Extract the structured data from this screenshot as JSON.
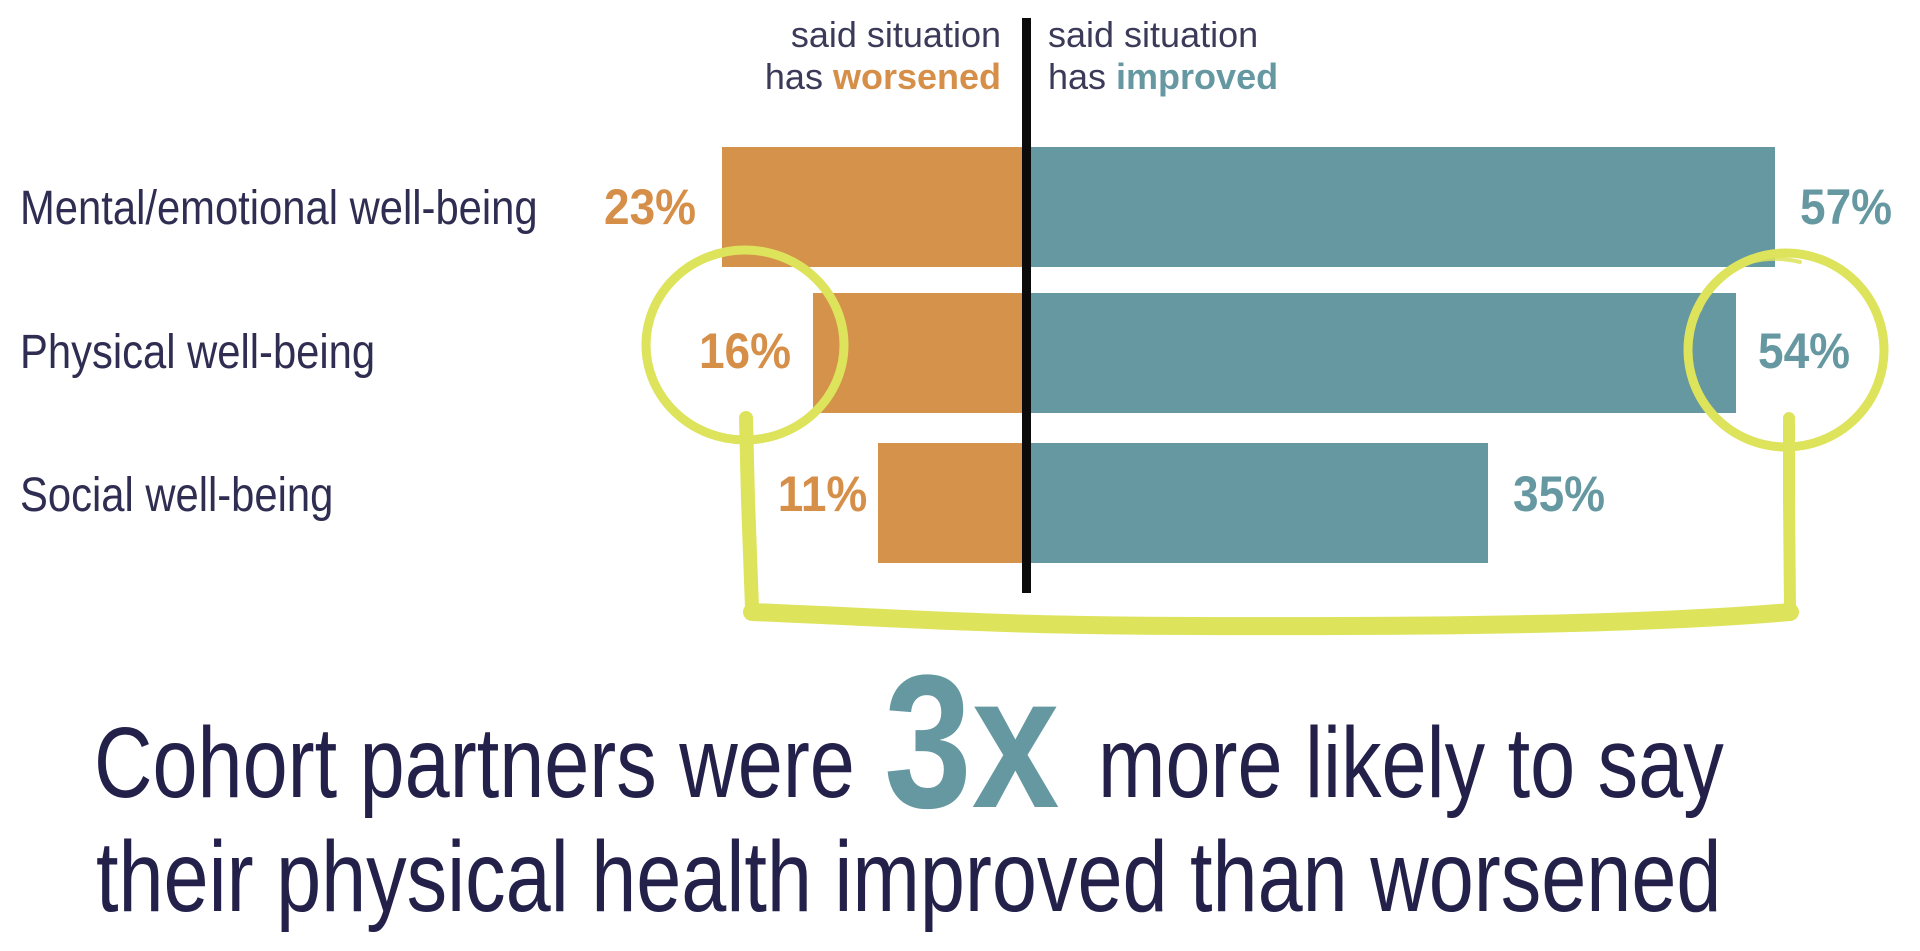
{
  "legend": {
    "left": {
      "line1": "said situation",
      "line2_prefix": "has ",
      "line2_emphasis": "worsened"
    },
    "right": {
      "line1": "said situation",
      "line2_prefix": "has ",
      "line2_emphasis": "improved"
    }
  },
  "rows": [
    {
      "label": "Mental/emotional well-being",
      "worsened_label": "23%",
      "improved_label": "57%"
    },
    {
      "label": "Physical well-being",
      "worsened_label": "16%",
      "improved_label": "54%"
    },
    {
      "label": "Social well-being",
      "worsened_label": "11%",
      "improved_label": "35%"
    }
  ],
  "headline": {
    "part1": "Cohort partners were",
    "emphasis": "3x",
    "part2": "more likely to say",
    "line2": "their physical health improved than worsened"
  },
  "colors": {
    "worsened": "#d4924b",
    "improved": "#6598a1",
    "text": "#2b2a4c",
    "highlight": "#dde35b",
    "divider": "#0b0b0b"
  },
  "chart_data": {
    "type": "bar",
    "orientation": "horizontal-diverging",
    "title": "",
    "categories": [
      "Mental/emotional well-being",
      "Physical well-being",
      "Social well-being"
    ],
    "series": [
      {
        "name": "said situation has worsened",
        "values": [
          23,
          16,
          11
        ],
        "direction": "left",
        "color": "#d4924b"
      },
      {
        "name": "said situation has improved",
        "values": [
          57,
          54,
          35
        ],
        "direction": "right",
        "color": "#6598a1"
      }
    ],
    "xlabel": "",
    "ylabel": "",
    "unit": "%",
    "grid": false,
    "legend_position": "top (column headers above divider)",
    "annotations": [
      "Circled values: 16% (Physical, worsened) and 54% (Physical, improved), connected by a hand-drawn bracket",
      "Cohort partners were 3x more likely to say their physical health improved than worsened"
    ]
  }
}
